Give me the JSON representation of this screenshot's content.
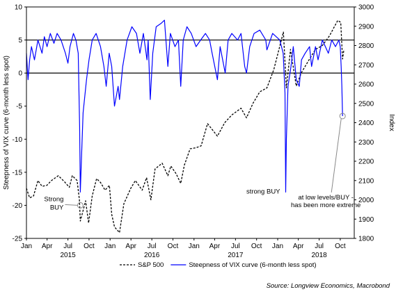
{
  "chart_data": {
    "type": "line",
    "ylabel": "Steepness of VIX curve (6-month less spot)",
    "y2label": "Index",
    "ylim": [
      -25,
      10
    ],
    "y2lim": [
      1800,
      3000
    ],
    "yticks": [
      10,
      5,
      0,
      -5,
      -10,
      -15,
      -20,
      -25
    ],
    "y2ticks": [
      3000,
      2900,
      2800,
      2700,
      2600,
      2500,
      2400,
      2300,
      2200,
      2100,
      2000,
      1900,
      1800
    ],
    "xlim": [
      "2015-01-01",
      "2018-12-01"
    ],
    "xticks": [
      {
        "label": "Jan",
        "date": "2015-01-01"
      },
      {
        "label": "Apr",
        "date": "2015-04-01"
      },
      {
        "label": "Jul",
        "date": "2015-07-01"
      },
      {
        "label": "Oct",
        "date": "2015-10-01"
      },
      {
        "label": "Jan",
        "date": "2016-01-01"
      },
      {
        "label": "Apr",
        "date": "2016-04-01"
      },
      {
        "label": "Jul",
        "date": "2016-07-01"
      },
      {
        "label": "Oct",
        "date": "2016-10-01"
      },
      {
        "label": "Jan",
        "date": "2017-01-01"
      },
      {
        "label": "Apr",
        "date": "2017-04-01"
      },
      {
        "label": "Jul",
        "date": "2017-07-01"
      },
      {
        "label": "Oct",
        "date": "2017-10-01"
      },
      {
        "label": "Jan",
        "date": "2018-01-01"
      },
      {
        "label": "Apr",
        "date": "2018-04-01"
      },
      {
        "label": "Jul",
        "date": "2018-07-01"
      },
      {
        "label": "Oct",
        "date": "2018-10-01"
      }
    ],
    "year_labels": [
      {
        "label": "2015",
        "date": "2015-07-01"
      },
      {
        "label": "2016",
        "date": "2016-07-01"
      },
      {
        "label": "2017",
        "date": "2017-07-01"
      },
      {
        "label": "2018",
        "date": "2018-07-01"
      }
    ],
    "reference_lines": [
      5,
      0
    ],
    "grid": false,
    "legend_position": "bottom",
    "series": [
      {
        "name": "S&P 500",
        "axis": "right",
        "color": "#000000",
        "style": "dashed",
        "points": [
          [
            "2015-01-01",
            2060
          ],
          [
            "2015-01-15",
            2010
          ],
          [
            "2015-02-01",
            2020
          ],
          [
            "2015-02-20",
            2100
          ],
          [
            "2015-03-10",
            2070
          ],
          [
            "2015-03-31",
            2075
          ],
          [
            "2015-04-20",
            2100
          ],
          [
            "2015-05-20",
            2125
          ],
          [
            "2015-06-15",
            2095
          ],
          [
            "2015-07-07",
            2065
          ],
          [
            "2015-07-20",
            2125
          ],
          [
            "2015-08-10",
            2100
          ],
          [
            "2015-08-20",
            2000
          ],
          [
            "2015-08-24",
            1890
          ],
          [
            "2015-09-01",
            1925
          ],
          [
            "2015-09-16",
            1995
          ],
          [
            "2015-09-29",
            1880
          ],
          [
            "2015-10-15",
            2020
          ],
          [
            "2015-11-03",
            2110
          ],
          [
            "2015-11-20",
            2090
          ],
          [
            "2015-12-10",
            2050
          ],
          [
            "2015-12-29",
            2075
          ],
          [
            "2016-01-08",
            1925
          ],
          [
            "2016-01-20",
            1860
          ],
          [
            "2016-02-11",
            1830
          ],
          [
            "2016-03-01",
            1980
          ],
          [
            "2016-03-31",
            2060
          ],
          [
            "2016-04-20",
            2100
          ],
          [
            "2016-05-20",
            2050
          ],
          [
            "2016-06-08",
            2115
          ],
          [
            "2016-06-27",
            2000
          ],
          [
            "2016-07-15",
            2160
          ],
          [
            "2016-08-15",
            2190
          ],
          [
            "2016-09-09",
            2125
          ],
          [
            "2016-09-22",
            2175
          ],
          [
            "2016-10-15",
            2135
          ],
          [
            "2016-11-04",
            2085
          ],
          [
            "2016-11-20",
            2180
          ],
          [
            "2016-12-15",
            2265
          ],
          [
            "2017-01-10",
            2270
          ],
          [
            "2017-02-01",
            2280
          ],
          [
            "2017-03-01",
            2395
          ],
          [
            "2017-04-13",
            2330
          ],
          [
            "2017-05-15",
            2400
          ],
          [
            "2017-06-15",
            2440
          ],
          [
            "2017-07-25",
            2475
          ],
          [
            "2017-08-18",
            2425
          ],
          [
            "2017-09-15",
            2500
          ],
          [
            "2017-10-15",
            2560
          ],
          [
            "2017-11-15",
            2580
          ],
          [
            "2017-12-15",
            2675
          ],
          [
            "2018-01-26",
            2870
          ],
          [
            "2018-02-08",
            2580
          ],
          [
            "2018-02-26",
            2780
          ],
          [
            "2018-03-23",
            2590
          ],
          [
            "2018-04-15",
            2660
          ],
          [
            "2018-05-15",
            2720
          ],
          [
            "2018-06-15",
            2780
          ],
          [
            "2018-07-15",
            2800
          ],
          [
            "2018-08-15",
            2850
          ],
          [
            "2018-09-20",
            2930
          ],
          [
            "2018-10-03",
            2920
          ],
          [
            "2018-10-11",
            2730
          ],
          [
            "2018-10-17",
            2780
          ]
        ]
      },
      {
        "name": "Steepness of VIX curve (6-month less spot)",
        "axis": "left",
        "color": "#0000ff",
        "style": "solid",
        "points": [
          [
            "2015-01-01",
            3
          ],
          [
            "2015-01-08",
            -1
          ],
          [
            "2015-01-15",
            2
          ],
          [
            "2015-01-23",
            4
          ],
          [
            "2015-02-05",
            2
          ],
          [
            "2015-02-20",
            5
          ],
          [
            "2015-03-10",
            3
          ],
          [
            "2015-03-20",
            5.5
          ],
          [
            "2015-04-01",
            4
          ],
          [
            "2015-04-15",
            6
          ],
          [
            "2015-05-01",
            4.5
          ],
          [
            "2015-05-15",
            6
          ],
          [
            "2015-06-01",
            5
          ],
          [
            "2015-06-20",
            3
          ],
          [
            "2015-07-01",
            1.5
          ],
          [
            "2015-07-10",
            4
          ],
          [
            "2015-07-25",
            6
          ],
          [
            "2015-08-05",
            5
          ],
          [
            "2015-08-15",
            3
          ],
          [
            "2015-08-21",
            -8
          ],
          [
            "2015-08-24",
            -18
          ],
          [
            "2015-08-28",
            -14
          ],
          [
            "2015-09-05",
            -6
          ],
          [
            "2015-09-20",
            -1
          ],
          [
            "2015-10-01",
            2
          ],
          [
            "2015-10-15",
            5
          ],
          [
            "2015-11-01",
            6
          ],
          [
            "2015-11-20",
            4
          ],
          [
            "2015-12-05",
            1
          ],
          [
            "2015-12-15",
            -2
          ],
          [
            "2015-12-28",
            3
          ],
          [
            "2016-01-08",
            1
          ],
          [
            "2016-01-20",
            -5
          ],
          [
            "2016-02-05",
            -2
          ],
          [
            "2016-02-11",
            -4
          ],
          [
            "2016-02-25",
            1
          ],
          [
            "2016-03-15",
            5
          ],
          [
            "2016-04-05",
            7
          ],
          [
            "2016-04-25",
            6
          ],
          [
            "2016-05-10",
            3
          ],
          [
            "2016-05-25",
            6
          ],
          [
            "2016-06-10",
            2
          ],
          [
            "2016-06-15",
            5
          ],
          [
            "2016-06-24",
            -4
          ],
          [
            "2016-07-05",
            3
          ],
          [
            "2016-07-20",
            7
          ],
          [
            "2016-08-10",
            7.5
          ],
          [
            "2016-08-25",
            8
          ],
          [
            "2016-09-09",
            1
          ],
          [
            "2016-09-20",
            6
          ],
          [
            "2016-10-10",
            4
          ],
          [
            "2016-10-25",
            5
          ],
          [
            "2016-11-04",
            -2
          ],
          [
            "2016-11-15",
            5
          ],
          [
            "2016-12-01",
            7
          ],
          [
            "2016-12-20",
            6
          ],
          [
            "2017-01-10",
            4
          ],
          [
            "2017-01-30",
            5
          ],
          [
            "2017-02-20",
            6
          ],
          [
            "2017-03-10",
            5
          ],
          [
            "2017-03-21",
            3
          ],
          [
            "2017-04-13",
            -1
          ],
          [
            "2017-04-25",
            4
          ],
          [
            "2017-05-17",
            0
          ],
          [
            "2017-05-30",
            5
          ],
          [
            "2017-06-15",
            6
          ],
          [
            "2017-07-10",
            5
          ],
          [
            "2017-07-25",
            6
          ],
          [
            "2017-08-10",
            1
          ],
          [
            "2017-08-18",
            0
          ],
          [
            "2017-09-01",
            4
          ],
          [
            "2017-09-20",
            6
          ],
          [
            "2017-10-15",
            6.5
          ],
          [
            "2017-11-10",
            5
          ],
          [
            "2017-11-15",
            3.5
          ],
          [
            "2017-12-10",
            6
          ],
          [
            "2018-01-10",
            5
          ],
          [
            "2018-01-25",
            3
          ],
          [
            "2018-02-02",
            -3
          ],
          [
            "2018-02-05",
            -18
          ],
          [
            "2018-02-08",
            -10
          ],
          [
            "2018-02-15",
            -2
          ],
          [
            "2018-02-28",
            1
          ],
          [
            "2018-03-10",
            4
          ],
          [
            "2018-03-23",
            -1
          ],
          [
            "2018-04-05",
            -2
          ],
          [
            "2018-04-15",
            2
          ],
          [
            "2018-05-01",
            3
          ],
          [
            "2018-05-20",
            4
          ],
          [
            "2018-05-29",
            1
          ],
          [
            "2018-06-15",
            4
          ],
          [
            "2018-06-26",
            2
          ],
          [
            "2018-07-15",
            5
          ],
          [
            "2018-08-10",
            3
          ],
          [
            "2018-08-25",
            5
          ],
          [
            "2018-09-10",
            4
          ],
          [
            "2018-09-25",
            5
          ],
          [
            "2018-10-01",
            4
          ],
          [
            "2018-10-05",
            1
          ],
          [
            "2018-10-08",
            -2
          ],
          [
            "2018-10-11",
            -6.5
          ]
        ]
      }
    ],
    "annotations": [
      {
        "lines": [
          "Strong",
          "BUY"
        ],
        "date": "2015-08-24",
        "value": -20
      },
      {
        "lines": [
          "strong BUY"
        ],
        "date": "2018-02-05",
        "value": -18
      },
      {
        "lines": [
          "at low levels/BUY -",
          "has been more extreme"
        ],
        "date": "2018-10-11",
        "value": -6.5
      }
    ],
    "source": "Source: Longview Economics, Macrobond"
  }
}
